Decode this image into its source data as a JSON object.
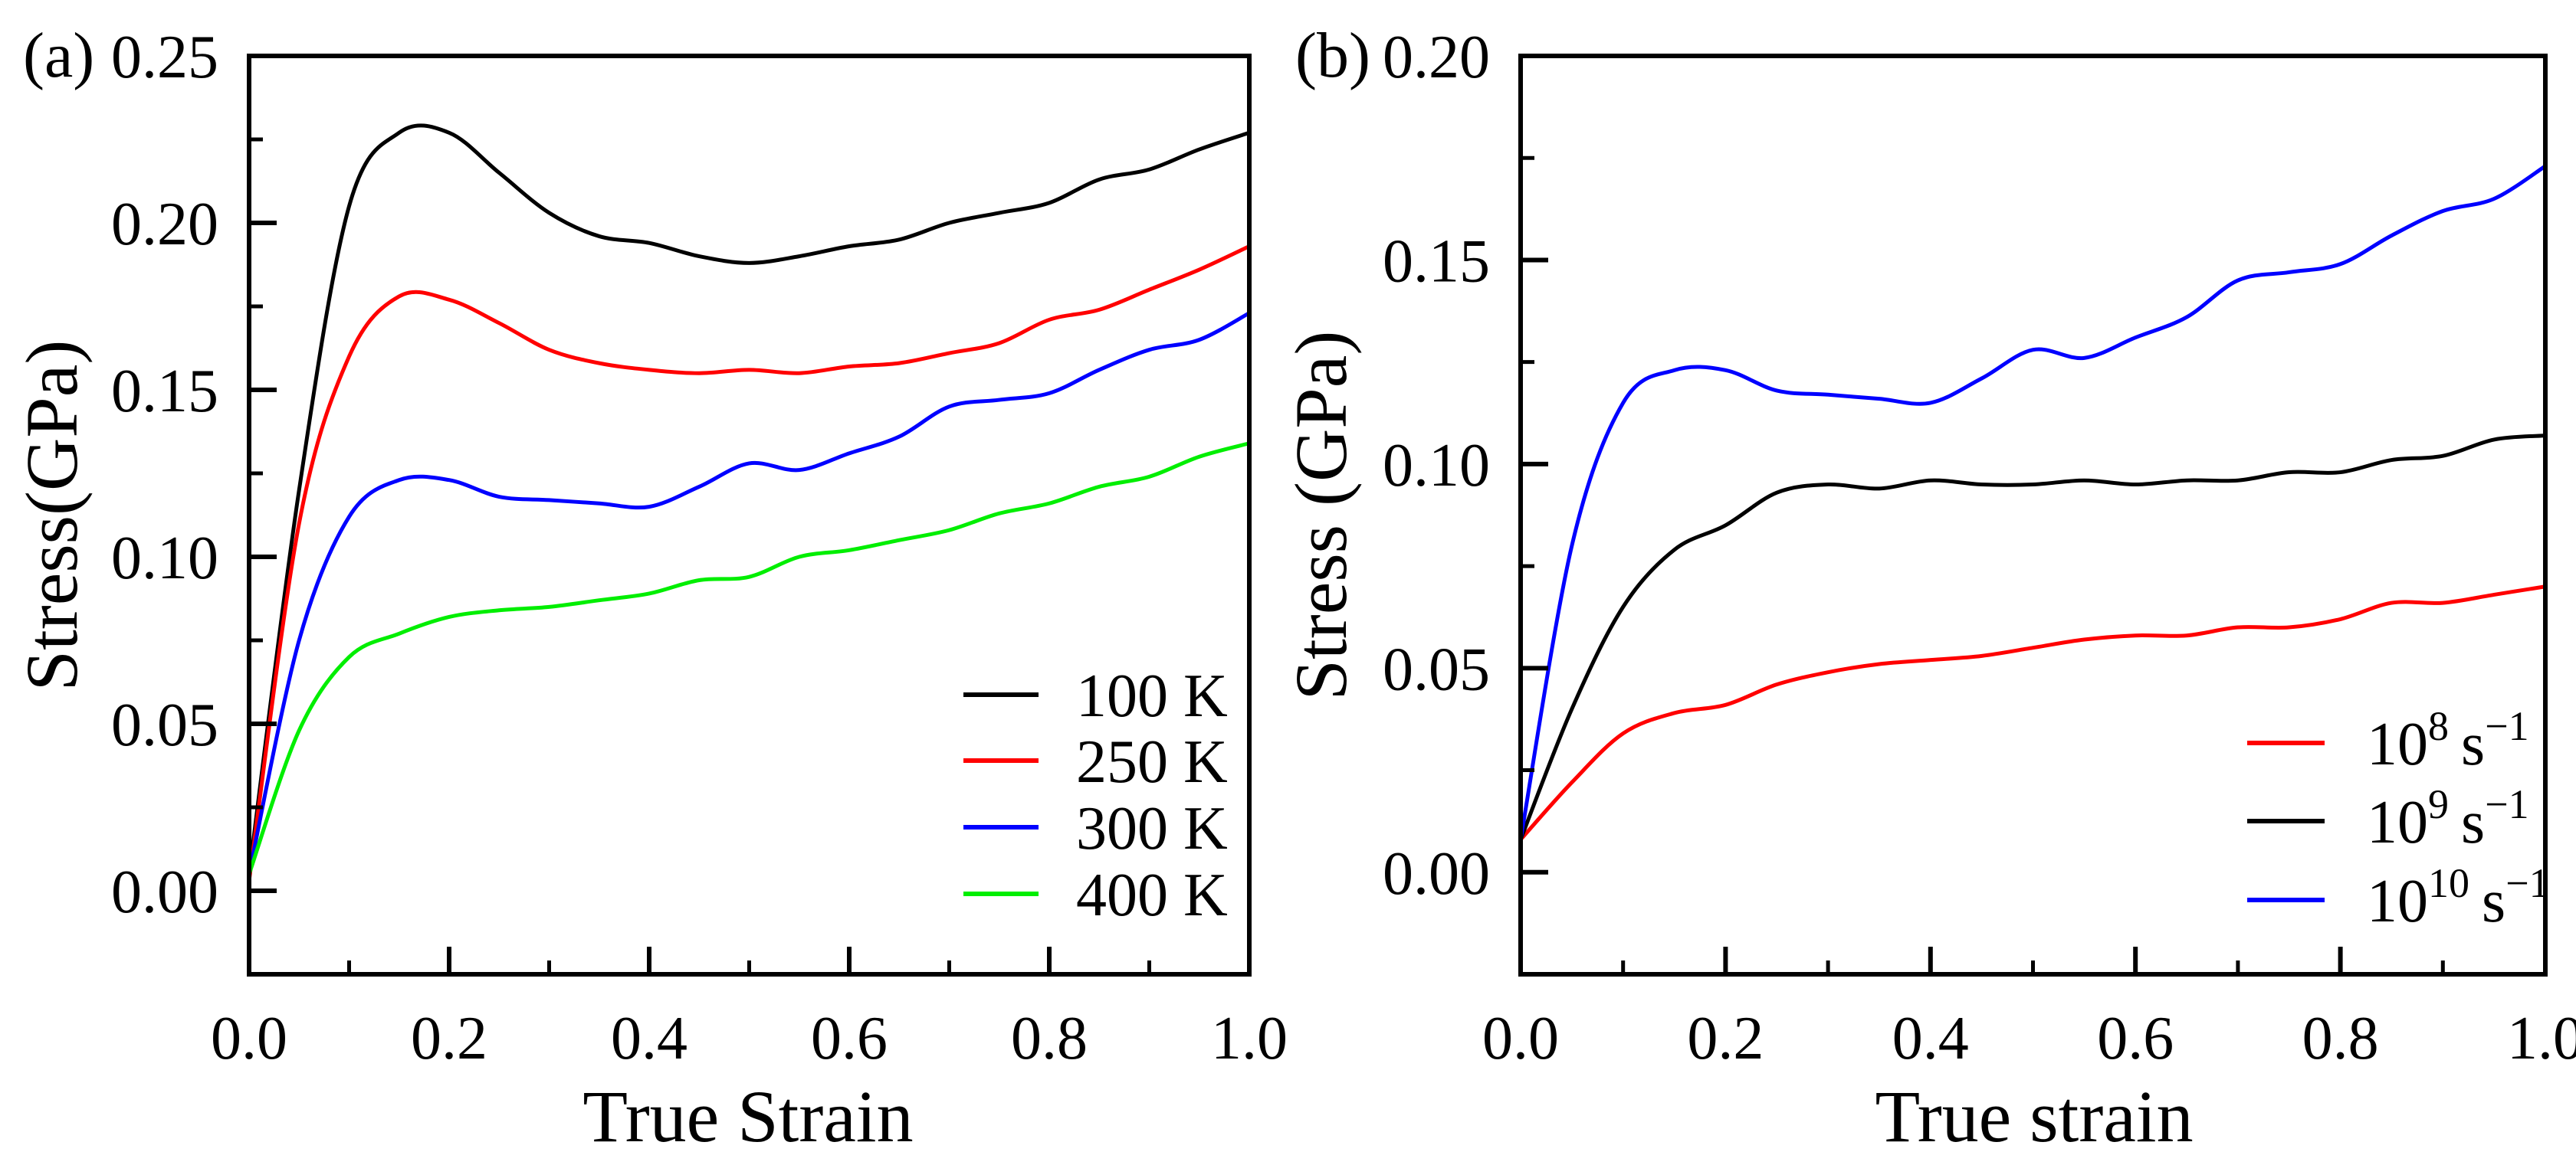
{
  "colors": {
    "black": "#000000",
    "red": "#ff0000",
    "blue": "#0000ff",
    "green": "#00ee00"
  },
  "chart_data": [
    {
      "type": "line",
      "panel_label": "(a)",
      "xlabel": "True Strain",
      "ylabel": "Stress(GPa)",
      "xlim": [
        0,
        1.0
      ],
      "ylim": [
        -0.025,
        0.25
      ],
      "xticks": [
        "0.0",
        "0.2",
        "0.4",
        "0.6",
        "0.8",
        "1.0"
      ],
      "yticks": [
        "0.00",
        "0.05",
        "0.10",
        "0.15",
        "0.20",
        "0.25"
      ],
      "legend_position": "bottom-right",
      "x": [
        0,
        0.05,
        0.1,
        0.15,
        0.2,
        0.25,
        0.3,
        0.35,
        0.4,
        0.45,
        0.5,
        0.55,
        0.6,
        0.65,
        0.7,
        0.75,
        0.8,
        0.85,
        0.9,
        0.95,
        1.0
      ],
      "series": [
        {
          "name": "100 K",
          "color": "#000000",
          "values": [
            0.005,
            0.12,
            0.205,
            0.227,
            0.227,
            0.215,
            0.203,
            0.196,
            0.194,
            0.19,
            0.188,
            0.19,
            0.193,
            0.195,
            0.2,
            0.203,
            0.206,
            0.213,
            0.216,
            0.222,
            0.227
          ]
        },
        {
          "name": "250 K",
          "color": "#ff0000",
          "values": [
            0.003,
            0.11,
            0.16,
            0.178,
            0.177,
            0.17,
            0.162,
            0.158,
            0.156,
            0.155,
            0.156,
            0.155,
            0.157,
            0.158,
            0.161,
            0.164,
            0.171,
            0.174,
            0.18,
            0.186,
            0.193
          ]
        },
        {
          "name": "300 K",
          "color": "#0000ff",
          "values": [
            0.005,
            0.075,
            0.112,
            0.123,
            0.123,
            0.118,
            0.117,
            0.116,
            0.115,
            0.121,
            0.128,
            0.126,
            0.131,
            0.136,
            0.145,
            0.147,
            0.149,
            0.156,
            0.162,
            0.165,
            0.173
          ]
        },
        {
          "name": "400 K",
          "color": "#00ee00",
          "values": [
            0.005,
            0.048,
            0.07,
            0.077,
            0.082,
            0.084,
            0.085,
            0.087,
            0.089,
            0.093,
            0.094,
            0.1,
            0.102,
            0.105,
            0.108,
            0.113,
            0.116,
            0.121,
            0.124,
            0.13,
            0.134
          ]
        }
      ]
    },
    {
      "type": "line",
      "panel_label": "(b)",
      "xlabel": "True strain",
      "ylabel": "Stress (GPa)",
      "xlim": [
        0,
        1.0
      ],
      "ylim": [
        -0.025,
        0.2
      ],
      "xticks": [
        "0.0",
        "0.2",
        "0.4",
        "0.6",
        "0.8",
        "1.0"
      ],
      "yticks": [
        "0.00",
        "0.05",
        "0.10",
        "0.15",
        "0.20"
      ],
      "legend_position": "bottom-right",
      "x": [
        0,
        0.05,
        0.1,
        0.15,
        0.2,
        0.25,
        0.3,
        0.35,
        0.4,
        0.45,
        0.5,
        0.55,
        0.6,
        0.65,
        0.7,
        0.75,
        0.8,
        0.85,
        0.9,
        0.95,
        1.0
      ],
      "series": [
        {
          "name": "10^8 s^-1",
          "base": "10",
          "exp": "8",
          "unit": "s",
          "unit_exp": "−1",
          "color": "#ff0000",
          "values": [
            0.008,
            0.022,
            0.034,
            0.039,
            0.041,
            0.046,
            0.049,
            0.051,
            0.052,
            0.053,
            0.055,
            0.057,
            0.058,
            0.058,
            0.06,
            0.06,
            0.062,
            0.066,
            0.066,
            0.068,
            0.07
          ]
        },
        {
          "name": "10^9 s^-1",
          "base": "10",
          "exp": "9",
          "unit": "s",
          "unit_exp": "−1",
          "color": "#000000",
          "values": [
            0.008,
            0.04,
            0.065,
            0.079,
            0.085,
            0.093,
            0.095,
            0.094,
            0.096,
            0.095,
            0.095,
            0.096,
            0.095,
            0.096,
            0.096,
            0.098,
            0.098,
            0.101,
            0.102,
            0.106,
            0.107
          ]
        },
        {
          "name": "10^10 s^-1",
          "base": "10",
          "exp": "10",
          "unit": "s",
          "unit_exp": "−1",
          "color": "#0000ff",
          "values": [
            0.008,
            0.08,
            0.115,
            0.123,
            0.123,
            0.118,
            0.117,
            0.116,
            0.115,
            0.121,
            0.128,
            0.126,
            0.131,
            0.136,
            0.145,
            0.147,
            0.149,
            0.156,
            0.162,
            0.165,
            0.173
          ]
        }
      ]
    }
  ]
}
